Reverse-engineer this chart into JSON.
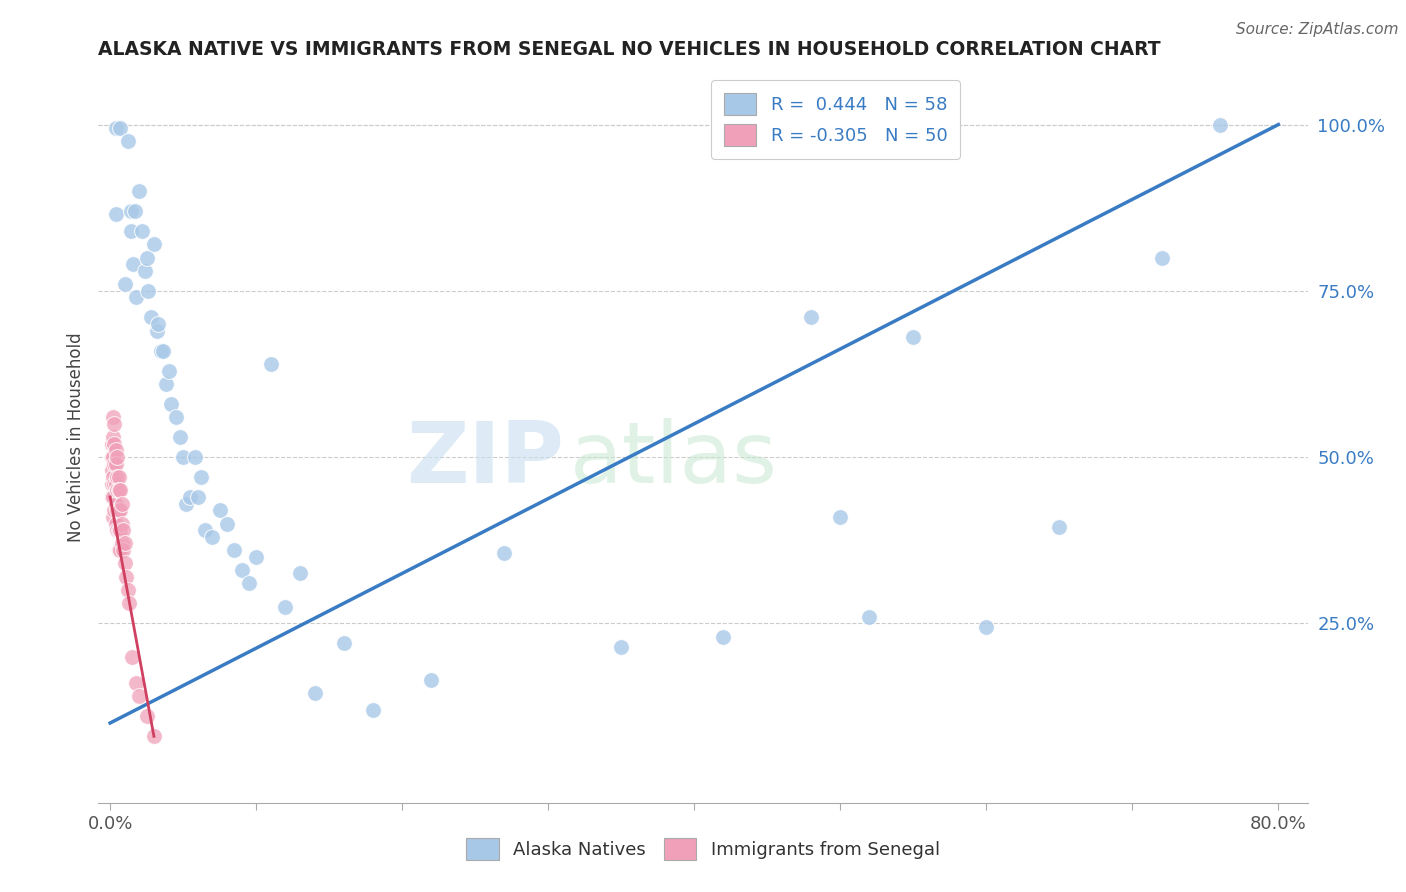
{
  "title": "ALASKA NATIVE VS IMMIGRANTS FROM SENEGAL NO VEHICLES IN HOUSEHOLD CORRELATION CHART",
  "source": "Source: ZipAtlas.com",
  "ylabel": "No Vehicles in Household",
  "xlim": [
    0.0,
    0.8
  ],
  "ylim": [
    0.0,
    1.05
  ],
  "blue_r": 0.444,
  "blue_n": 58,
  "pink_r": -0.305,
  "pink_n": 50,
  "blue_color": "#a8c8e8",
  "pink_color": "#f0a0b8",
  "blue_line_color": "#3a7cc4",
  "pink_line_color": "#d04060",
  "watermark_zip": "ZIP",
  "watermark_atlas": "atlas",
  "blue_scatter_x": [
    0.004,
    0.004,
    0.007,
    0.01,
    0.012,
    0.014,
    0.014,
    0.016,
    0.017,
    0.018,
    0.02,
    0.022,
    0.024,
    0.025,
    0.026,
    0.028,
    0.03,
    0.032,
    0.033,
    0.035,
    0.036,
    0.038,
    0.04,
    0.042,
    0.045,
    0.048,
    0.05,
    0.052,
    0.055,
    0.058,
    0.06,
    0.062,
    0.065,
    0.07,
    0.075,
    0.08,
    0.085,
    0.09,
    0.095,
    0.1,
    0.11,
    0.12,
    0.13,
    0.14,
    0.16,
    0.18,
    0.22,
    0.27,
    0.35,
    0.42,
    0.48,
    0.5,
    0.52,
    0.55,
    0.6,
    0.65,
    0.72,
    0.76
  ],
  "blue_scatter_y": [
    0.995,
    0.865,
    0.995,
    0.76,
    0.975,
    0.87,
    0.84,
    0.79,
    0.87,
    0.74,
    0.9,
    0.84,
    0.78,
    0.8,
    0.75,
    0.71,
    0.82,
    0.69,
    0.7,
    0.66,
    0.66,
    0.61,
    0.63,
    0.58,
    0.56,
    0.53,
    0.5,
    0.43,
    0.44,
    0.5,
    0.44,
    0.47,
    0.39,
    0.38,
    0.42,
    0.4,
    0.36,
    0.33,
    0.31,
    0.35,
    0.64,
    0.275,
    0.325,
    0.145,
    0.22,
    0.12,
    0.165,
    0.355,
    0.215,
    0.23,
    0.71,
    0.41,
    0.26,
    0.68,
    0.245,
    0.395,
    0.8,
    1.0
  ],
  "pink_scatter_x": [
    0.001,
    0.001,
    0.001,
    0.001,
    0.001,
    0.002,
    0.002,
    0.002,
    0.002,
    0.002,
    0.002,
    0.003,
    0.003,
    0.003,
    0.003,
    0.003,
    0.004,
    0.004,
    0.004,
    0.004,
    0.004,
    0.005,
    0.005,
    0.005,
    0.005,
    0.005,
    0.006,
    0.006,
    0.006,
    0.006,
    0.006,
    0.007,
    0.007,
    0.007,
    0.007,
    0.008,
    0.008,
    0.008,
    0.009,
    0.009,
    0.01,
    0.01,
    0.011,
    0.012,
    0.013,
    0.015,
    0.018,
    0.02,
    0.025,
    0.03
  ],
  "pink_scatter_y": [
    0.52,
    0.5,
    0.48,
    0.46,
    0.44,
    0.56,
    0.53,
    0.5,
    0.47,
    0.44,
    0.41,
    0.55,
    0.52,
    0.49,
    0.46,
    0.42,
    0.51,
    0.49,
    0.46,
    0.43,
    0.4,
    0.5,
    0.47,
    0.45,
    0.42,
    0.39,
    0.47,
    0.45,
    0.42,
    0.39,
    0.36,
    0.45,
    0.42,
    0.39,
    0.36,
    0.43,
    0.4,
    0.37,
    0.39,
    0.36,
    0.37,
    0.34,
    0.32,
    0.3,
    0.28,
    0.2,
    0.16,
    0.14,
    0.11,
    0.08
  ],
  "blue_line_x0": 0.0,
  "blue_line_y0": 0.1,
  "blue_line_x1": 0.8,
  "blue_line_y1": 1.0,
  "pink_line_x0": 0.0,
  "pink_line_y0": 0.44,
  "pink_line_x1": 0.03,
  "pink_line_y1": 0.08
}
